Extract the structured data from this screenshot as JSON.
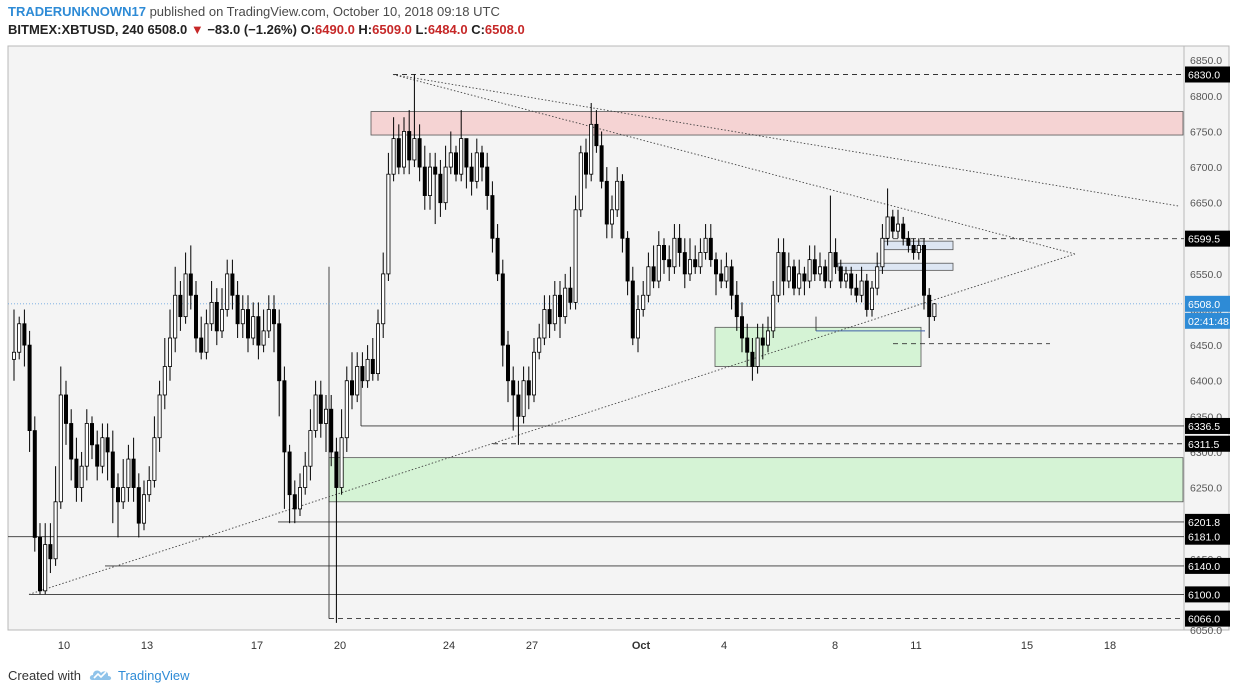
{
  "header": {
    "author": "TRADERUNKNOWN17",
    "published_text": "published on TradingView.com, October 10, 2018 09:18 UTC",
    "symbol": "BITMEX:XBTUSD, 240",
    "last": "6508.0",
    "change": "−83.0 (−1.26%)",
    "o_label": "O:",
    "o_value": "6490.0",
    "h_label": "H:",
    "h_value": "6509.0",
    "l_label": "L:",
    "l_value": "6484.0",
    "c_label": "C:",
    "c_value": "6508.0"
  },
  "footer": {
    "created_with": "Created with",
    "brand": "TradingView"
  },
  "colors": {
    "background": "#f4f4f4",
    "candle": "#000000",
    "supply_zone": "#f5d3d3",
    "demand_zone": "#d5f3d5",
    "blue_box": "#dde6f3",
    "accent_blue": "#2e8bd6",
    "down": "#c62828"
  },
  "chart_data": {
    "type": "candlestick",
    "symbol": "BITMEX:XBTUSD",
    "interval": "240",
    "y_range": [
      6050,
      6870
    ],
    "y_ticks": [
      6050,
      6100,
      6150,
      6200,
      6250,
      6300,
      6350,
      6400,
      6450,
      6500,
      6550,
      6600,
      6650,
      6700,
      6750,
      6800,
      6850
    ],
    "x_labels": [
      "10",
      "13",
      "17",
      "20",
      "24",
      "27",
      "Oct",
      "4",
      "8",
      "11",
      "15",
      "18"
    ],
    "price_labels": [
      "6830.0",
      "6599.5",
      "6508.0",
      "02:41:48",
      "6336.5",
      "6311.5",
      "6201.8",
      "6181.0",
      "6140.0",
      "6100.0",
      "6066.0"
    ],
    "last_price": 6508.0,
    "countdown": "02:41:48",
    "candles": [
      [
        6430,
        6440,
        6500,
        6400
      ],
      [
        6440,
        6480,
        6490,
        6430
      ],
      [
        6480,
        6450,
        6500,
        6420
      ],
      [
        6450,
        6330,
        6470,
        6300
      ],
      [
        6330,
        6180,
        6350,
        6160
      ],
      [
        6180,
        6105,
        6200,
        6100
      ],
      [
        6105,
        6170,
        6200,
        6100
      ],
      [
        6170,
        6150,
        6200,
        6130
      ],
      [
        6150,
        6230,
        6280,
        6140
      ],
      [
        6230,
        6380,
        6420,
        6220
      ],
      [
        6380,
        6340,
        6400,
        6310
      ],
      [
        6340,
        6290,
        6360,
        6260
      ],
      [
        6290,
        6250,
        6320,
        6230
      ],
      [
        6250,
        6280,
        6300,
        6230
      ],
      [
        6280,
        6340,
        6360,
        6260
      ],
      [
        6340,
        6310,
        6350,
        6290
      ],
      [
        6310,
        6280,
        6330,
        6260
      ],
      [
        6280,
        6320,
        6340,
        6270
      ],
      [
        6320,
        6300,
        6340,
        6260
      ],
      [
        6300,
        6250,
        6330,
        6200
      ],
      [
        6250,
        6230,
        6270,
        6180
      ],
      [
        6230,
        6250,
        6290,
        6220
      ],
      [
        6250,
        6290,
        6310,
        6230
      ],
      [
        6290,
        6250,
        6320,
        6230
      ],
      [
        6250,
        6200,
        6270,
        6180
      ],
      [
        6200,
        6240,
        6260,
        6190
      ],
      [
        6240,
        6260,
        6280,
        6230
      ],
      [
        6260,
        6320,
        6350,
        6250
      ],
      [
        6320,
        6380,
        6400,
        6300
      ],
      [
        6380,
        6420,
        6460,
        6360
      ],
      [
        6420,
        6460,
        6500,
        6400
      ],
      [
        6460,
        6520,
        6560,
        6440
      ],
      [
        6520,
        6490,
        6540,
        6470
      ],
      [
        6490,
        6550,
        6580,
        6480
      ],
      [
        6550,
        6520,
        6590,
        6500
      ],
      [
        6520,
        6460,
        6540,
        6440
      ],
      [
        6460,
        6440,
        6490,
        6430
      ],
      [
        6440,
        6480,
        6500,
        6430
      ],
      [
        6480,
        6510,
        6540,
        6470
      ],
      [
        6510,
        6470,
        6530,
        6450
      ],
      [
        6470,
        6500,
        6530,
        6460
      ],
      [
        6500,
        6550,
        6570,
        6490
      ],
      [
        6550,
        6520,
        6570,
        6500
      ],
      [
        6520,
        6480,
        6540,
        6460
      ],
      [
        6480,
        6500,
        6520,
        6460
      ],
      [
        6500,
        6460,
        6520,
        6440
      ],
      [
        6460,
        6490,
        6510,
        6450
      ],
      [
        6490,
        6450,
        6510,
        6430
      ],
      [
        6450,
        6470,
        6500,
        6440
      ],
      [
        6470,
        6500,
        6520,
        6460
      ],
      [
        6500,
        6480,
        6520,
        6440
      ],
      [
        6480,
        6400,
        6500,
        6350
      ],
      [
        6400,
        6300,
        6420,
        6220
      ],
      [
        6300,
        6240,
        6310,
        6200
      ],
      [
        6240,
        6220,
        6260,
        6200
      ],
      [
        6220,
        6250,
        6270,
        6210
      ],
      [
        6250,
        6280,
        6300,
        6240
      ],
      [
        6280,
        6330,
        6360,
        6260
      ],
      [
        6330,
        6380,
        6400,
        6320
      ],
      [
        6380,
        6340,
        6400,
        6320
      ],
      [
        6340,
        6360,
        6380,
        6300
      ],
      [
        6360,
        6300,
        6380,
        6280
      ],
      [
        6300,
        6250,
        6320,
        6060
      ],
      [
        6250,
        6320,
        6360,
        6240
      ],
      [
        6320,
        6400,
        6420,
        6300
      ],
      [
        6400,
        6380,
        6440,
        6360
      ],
      [
        6380,
        6420,
        6440,
        6370
      ],
      [
        6420,
        6400,
        6440,
        6390
      ],
      [
        6400,
        6430,
        6450,
        6390
      ],
      [
        6430,
        6410,
        6460,
        6400
      ],
      [
        6410,
        6480,
        6500,
        6400
      ],
      [
        6480,
        6550,
        6580,
        6460
      ],
      [
        6550,
        6690,
        6720,
        6540
      ],
      [
        6690,
        6740,
        6770,
        6680
      ],
      [
        6740,
        6700,
        6760,
        6690
      ],
      [
        6700,
        6750,
        6770,
        6690
      ],
      [
        6750,
        6710,
        6780,
        6690
      ],
      [
        6710,
        6740,
        6830,
        6700
      ],
      [
        6740,
        6700,
        6760,
        6680
      ],
      [
        6700,
        6660,
        6730,
        6640
      ],
      [
        6660,
        6700,
        6720,
        6640
      ],
      [
        6700,
        6690,
        6720,
        6620
      ],
      [
        6690,
        6650,
        6710,
        6630
      ],
      [
        6650,
        6700,
        6730,
        6640
      ],
      [
        6700,
        6720,
        6750,
        6690
      ],
      [
        6720,
        6690,
        6730,
        6680
      ],
      [
        6690,
        6740,
        6780,
        6680
      ],
      [
        6740,
        6700,
        6740,
        6670
      ],
      [
        6700,
        6680,
        6720,
        6660
      ],
      [
        6680,
        6720,
        6740,
        6670
      ],
      [
        6720,
        6700,
        6730,
        6680
      ],
      [
        6700,
        6660,
        6720,
        6640
      ],
      [
        6660,
        6600,
        6680,
        6580
      ],
      [
        6600,
        6550,
        6620,
        6540
      ],
      [
        6550,
        6450,
        6570,
        6420
      ],
      [
        6450,
        6400,
        6470,
        6370
      ],
      [
        6400,
        6380,
        6420,
        6330
      ],
      [
        6380,
        6350,
        6400,
        6310
      ],
      [
        6350,
        6400,
        6420,
        6340
      ],
      [
        6400,
        6380,
        6420,
        6360
      ],
      [
        6380,
        6440,
        6460,
        6370
      ],
      [
        6440,
        6460,
        6480,
        6430
      ],
      [
        6460,
        6500,
        6520,
        6450
      ],
      [
        6500,
        6480,
        6520,
        6460
      ],
      [
        6480,
        6520,
        6540,
        6470
      ],
      [
        6520,
        6490,
        6540,
        6460
      ],
      [
        6490,
        6530,
        6550,
        6480
      ],
      [
        6530,
        6510,
        6560,
        6500
      ],
      [
        6510,
        6640,
        6660,
        6500
      ],
      [
        6640,
        6720,
        6730,
        6630
      ],
      [
        6720,
        6690,
        6740,
        6670
      ],
      [
        6690,
        6760,
        6790,
        6680
      ],
      [
        6760,
        6730,
        6780,
        6720
      ],
      [
        6730,
        6680,
        6750,
        6670
      ],
      [
        6680,
        6620,
        6700,
        6600
      ],
      [
        6620,
        6640,
        6660,
        6600
      ],
      [
        6640,
        6680,
        6700,
        6630
      ],
      [
        6680,
        6600,
        6690,
        6580
      ],
      [
        6600,
        6540,
        6610,
        6520
      ],
      [
        6540,
        6460,
        6560,
        6450
      ],
      [
        6460,
        6500,
        6520,
        6440
      ],
      [
        6500,
        6520,
        6540,
        6490
      ],
      [
        6520,
        6560,
        6580,
        6510
      ],
      [
        6560,
        6540,
        6590,
        6530
      ],
      [
        6540,
        6590,
        6610,
        6530
      ],
      [
        6590,
        6570,
        6600,
        6550
      ],
      [
        6570,
        6560,
        6590,
        6540
      ],
      [
        6560,
        6600,
        6620,
        6550
      ],
      [
        6600,
        6580,
        6620,
        6560
      ],
      [
        6580,
        6550,
        6600,
        6530
      ],
      [
        6550,
        6570,
        6600,
        6540
      ],
      [
        6570,
        6560,
        6590,
        6550
      ],
      [
        6560,
        6580,
        6600,
        6550
      ],
      [
        6580,
        6600,
        6620,
        6570
      ],
      [
        6600,
        6570,
        6620,
        6560
      ],
      [
        6570,
        6550,
        6580,
        6520
      ],
      [
        6550,
        6540,
        6570,
        6530
      ],
      [
        6540,
        6560,
        6580,
        6530
      ],
      [
        6560,
        6520,
        6570,
        6500
      ],
      [
        6520,
        6490,
        6540,
        6470
      ],
      [
        6490,
        6460,
        6510,
        6440
      ],
      [
        6460,
        6440,
        6480,
        6420
      ],
      [
        6440,
        6420,
        6460,
        6400
      ],
      [
        6420,
        6460,
        6480,
        6410
      ],
      [
        6460,
        6450,
        6480,
        6430
      ],
      [
        6450,
        6470,
        6490,
        6440
      ],
      [
        6470,
        6520,
        6540,
        6460
      ],
      [
        6520,
        6580,
        6600,
        6510
      ],
      [
        6580,
        6540,
        6600,
        6520
      ],
      [
        6540,
        6560,
        6580,
        6530
      ],
      [
        6560,
        6530,
        6570,
        6520
      ],
      [
        6530,
        6550,
        6570,
        6520
      ],
      [
        6550,
        6540,
        6560,
        6520
      ],
      [
        6540,
        6570,
        6590,
        6530
      ],
      [
        6570,
        6550,
        6590,
        6540
      ],
      [
        6550,
        6560,
        6580,
        6540
      ],
      [
        6560,
        6540,
        6570,
        6530
      ],
      [
        6540,
        6580,
        6660,
        6530
      ],
      [
        6580,
        6560,
        6600,
        6550
      ],
      [
        6560,
        6540,
        6570,
        6530
      ],
      [
        6540,
        6550,
        6560,
        6530
      ],
      [
        6550,
        6530,
        6560,
        6520
      ],
      [
        6530,
        6520,
        6550,
        6510
      ],
      [
        6520,
        6540,
        6560,
        6510
      ],
      [
        6540,
        6500,
        6550,
        6490
      ],
      [
        6500,
        6530,
        6540,
        6490
      ],
      [
        6530,
        6560,
        6580,
        6520
      ],
      [
        6560,
        6600,
        6620,
        6550
      ],
      [
        6600,
        6630,
        6670,
        6590
      ],
      [
        6630,
        6610,
        6640,
        6600
      ],
      [
        6610,
        6620,
        6640,
        6600
      ],
      [
        6620,
        6600,
        6630,
        6590
      ],
      [
        6600,
        6590,
        6610,
        6580
      ],
      [
        6590,
        6580,
        6600,
        6570
      ],
      [
        6580,
        6590,
        6600,
        6570
      ],
      [
        6590,
        6520,
        6600,
        6500
      ],
      [
        6520,
        6490,
        6530,
        6460
      ],
      [
        6490,
        6508,
        6509,
        6484
      ]
    ],
    "zones": [
      {
        "name": "supply",
        "from": 6745,
        "to": 6778
      },
      {
        "name": "demand-upper",
        "from": 6420,
        "to": 6475
      },
      {
        "name": "demand-lower",
        "from": 6230,
        "to": 6292
      },
      {
        "name": "blue-box-1",
        "from": 6584,
        "to": 6596
      },
      {
        "name": "blue-box-2",
        "from": 6555,
        "to": 6565
      }
    ],
    "levels": [
      6830.0,
      6599.5,
      6336.5,
      6311.5,
      6201.8,
      6181.0,
      6140.0,
      6100.0,
      6066.0,
      6452
    ]
  }
}
